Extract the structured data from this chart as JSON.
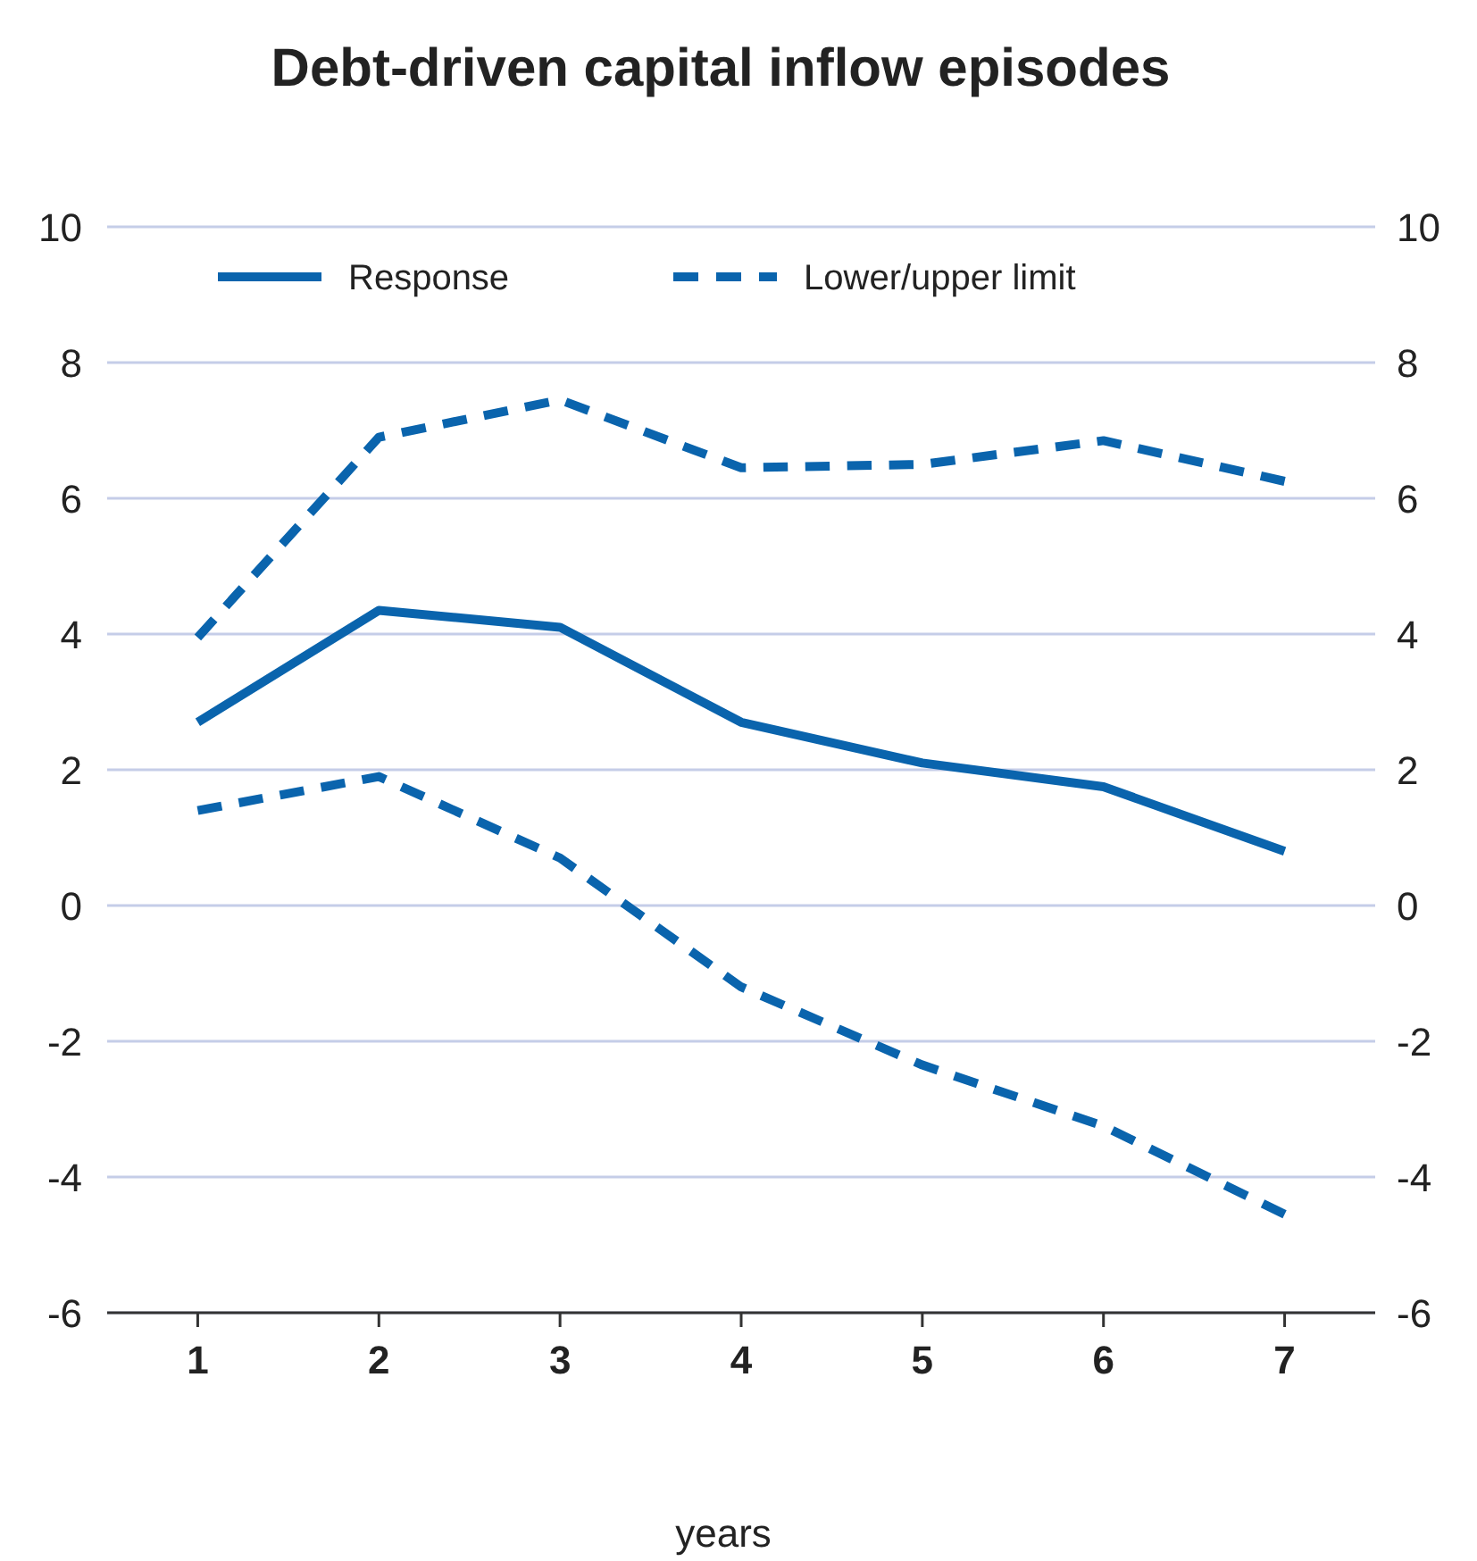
{
  "chart_data": {
    "type": "line",
    "title": "Debt-driven capital inflow episodes",
    "xlabel": "years",
    "x": [
      1,
      2,
      3,
      4,
      5,
      6,
      7
    ],
    "xlim": [
      0.5,
      7.5
    ],
    "xticks": [
      1,
      2,
      3,
      4,
      5,
      6,
      7
    ],
    "ylim": [
      -6,
      10
    ],
    "yticks": [
      -6,
      -4,
      -2,
      0,
      2,
      4,
      6,
      8,
      10
    ],
    "y2lim": [
      -6,
      10
    ],
    "y2ticks": [
      -6,
      -4,
      -2,
      0,
      2,
      4,
      6,
      8,
      10
    ],
    "grid": "y",
    "legend": "top",
    "series": [
      {
        "name": "Response",
        "color": "#0a64ad",
        "line_style": "solid",
        "values": [
          2.7,
          4.35,
          4.1,
          2.7,
          2.1,
          1.75,
          0.8
        ]
      },
      {
        "name": "Lower/upper limit",
        "color": "#0a64ad",
        "line_style": "dashed",
        "values": [
          3.95,
          6.9,
          7.45,
          6.45,
          6.5,
          6.85,
          6.25
        ]
      },
      {
        "color": "#0a64ad",
        "line_style": "dashed",
        "values": [
          1.4,
          1.9,
          0.7,
          -1.2,
          -2.35,
          -3.25,
          -4.55
        ]
      }
    ]
  }
}
